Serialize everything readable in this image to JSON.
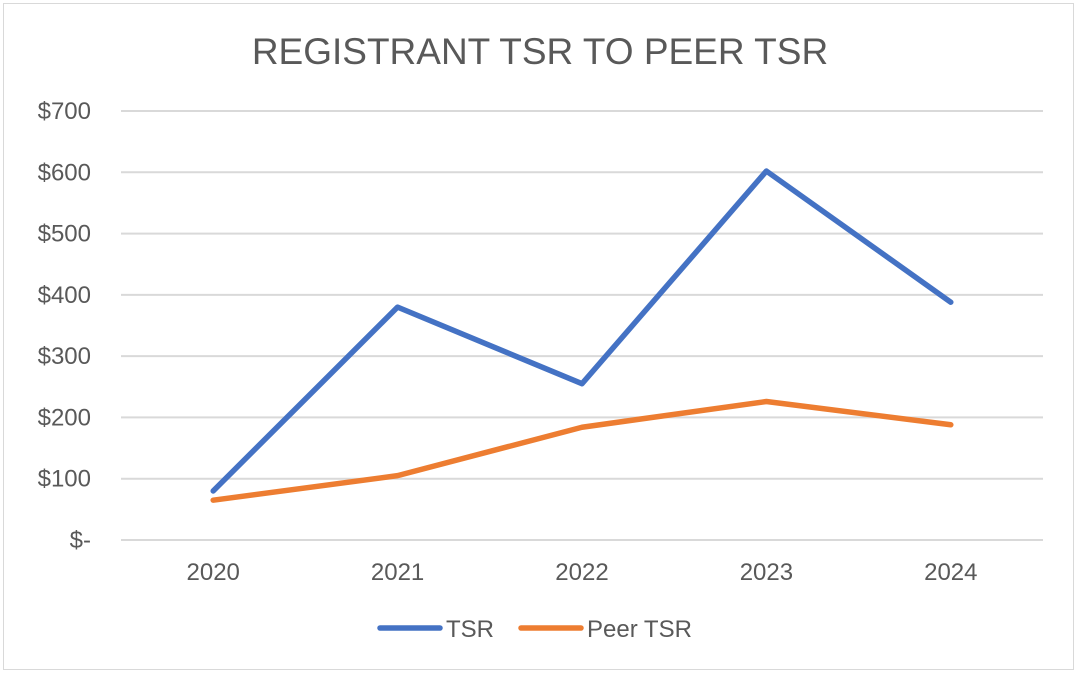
{
  "chart_data": {
    "type": "line",
    "title": "REGISTRANT TSR TO PEER TSR",
    "xlabel": "",
    "ylabel": "",
    "categories": [
      "2020",
      "2021",
      "2022",
      "2023",
      "2024"
    ],
    "ylim": [
      0,
      700
    ],
    "y_ticks": [
      0,
      100,
      200,
      300,
      400,
      500,
      600,
      700
    ],
    "y_tick_labels": [
      "$-",
      "$100",
      "$200",
      "$300",
      "$400",
      "$500",
      "$600",
      "$700"
    ],
    "grid": true,
    "legend_position": "bottom-center",
    "series": [
      {
        "name": "TSR",
        "color": "#4472c4",
        "values": [
          80,
          380,
          255,
          602,
          388
        ]
      },
      {
        "name": "Peer TSR",
        "color": "#ed7d31",
        "values": [
          65,
          105,
          184,
          226,
          188
        ]
      }
    ]
  }
}
